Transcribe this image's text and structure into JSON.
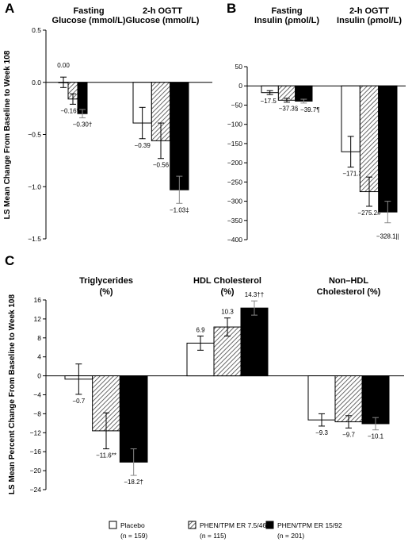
{
  "chart_data": [
    {
      "panel": "A",
      "type": "bar",
      "ylabel": "LS Mean Change From Baseline to Week 108",
      "ylim": [
        -1.5,
        0.5
      ],
      "yticks": [
        "0.5",
        "0.0",
        "-0.5",
        "-1.0",
        "-1.5"
      ],
      "groups": [
        {
          "header": [
            "Fasting",
            "Glucose (mmol/L)"
          ],
          "values": [
            0.0,
            -0.16,
            -0.3
          ],
          "errors": [
            0.05,
            0.05,
            0.04
          ],
          "labels": [
            "0.00",
            "−0.16*",
            "−0.30†"
          ]
        },
        {
          "header": [
            "2-h OGTT",
            "Glucose (mmol/L)"
          ],
          "values": [
            -0.39,
            -0.56,
            -1.03
          ],
          "errors": [
            0.15,
            0.17,
            0.13
          ],
          "labels": [
            "−0.39",
            "−0.56",
            "−1.03‡"
          ]
        }
      ]
    },
    {
      "panel": "B",
      "type": "bar",
      "ylim": [
        -400,
        50
      ],
      "yticks": [
        "50",
        "0",
        "-50",
        "-100",
        "-150",
        "-200",
        "-250",
        "-300",
        "-350",
        "-400"
      ],
      "groups": [
        {
          "header": [
            "Fasting",
            "Insulin (ρmol/L)"
          ],
          "values": [
            -17.5,
            -37.3,
            -39.7
          ],
          "errors": [
            5,
            5,
            5
          ],
          "labels": [
            "−17.5",
            "−37.3§",
            "−39.7¶"
          ]
        },
        {
          "header": [
            "2-h OGTT",
            "Insulin (ρmol/L)"
          ],
          "values": [
            -171.3,
            -275.2,
            -328.1
          ],
          "errors": [
            40,
            38,
            28
          ],
          "labels": [
            "−171.3",
            "−275.2#",
            "−328.1||"
          ]
        }
      ]
    },
    {
      "panel": "C",
      "type": "bar",
      "ylabel": "LS Mean Percent Change From Baseline to Week 108",
      "ylim": [
        -24,
        16
      ],
      "yticks": [
        "16",
        "12",
        "8",
        "4",
        "0",
        "-4",
        "-8",
        "-12",
        "-16",
        "-20",
        "-24"
      ],
      "groups": [
        {
          "header": [
            "Triglycerides",
            "(%)"
          ],
          "values": [
            -0.7,
            -11.6,
            -18.2
          ],
          "errors": [
            3.2,
            3.8,
            2.8
          ],
          "labels": [
            "−0.7",
            "−11.6**",
            "−18.2†"
          ]
        },
        {
          "header": [
            "HDL Cholesterol",
            "(%)"
          ],
          "values": [
            6.9,
            10.3,
            14.3
          ],
          "errors": [
            1.5,
            1.9,
            1.5
          ],
          "labels": [
            "6.9",
            "10.3",
            "14.3††"
          ]
        },
        {
          "header": [
            "Non–HDL",
            "Cholesterol (%)"
          ],
          "values": [
            -9.3,
            -9.7,
            -10.1
          ],
          "errors": [
            1.3,
            1.3,
            1.3
          ],
          "labels": [
            "−9.3",
            "−9.7",
            "−10.1"
          ]
        }
      ]
    }
  ],
  "legend": [
    {
      "name": "Placebo",
      "n": "(n = 159)",
      "fill": "white"
    },
    {
      "name": "PHEN/TPM ER 7.5/46",
      "n": "(n = 115)",
      "fill": "hatch"
    },
    {
      "name": "PHEN/TPM ER 15/92",
      "n": "(n = 201)",
      "fill": "black"
    }
  ]
}
